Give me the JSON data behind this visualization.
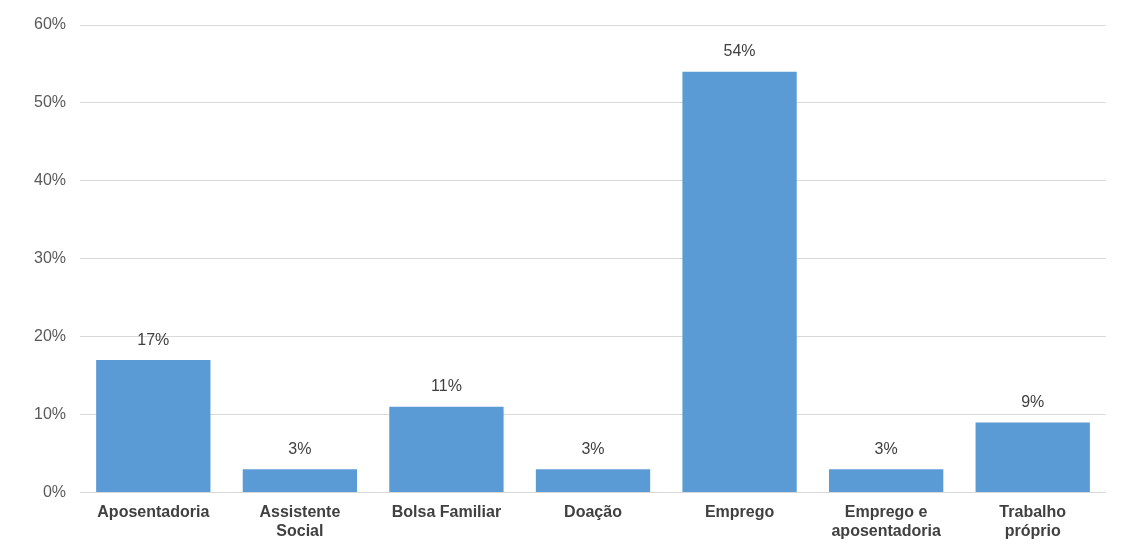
{
  "chart_data": {
    "type": "bar",
    "categories": [
      "Aposentadoria",
      "Assistente Social",
      "Bolsa Familiar",
      "Doação",
      "Emprego",
      "Emprego e aposentadoria",
      "Trabalho próprio"
    ],
    "values": [
      17,
      3,
      11,
      3,
      54,
      3,
      9
    ],
    "color": "#5b9bd5",
    "ylim": [
      0,
      60
    ],
    "yticks": [
      {
        "value": 0,
        "label": "0%"
      },
      {
        "value": 10,
        "label": "10%"
      },
      {
        "value": 20,
        "label": "20%"
      },
      {
        "value": 30,
        "label": "30%"
      },
      {
        "value": 40,
        "label": "40%"
      },
      {
        "value": 50,
        "label": "50%"
      },
      {
        "value": 60,
        "label": "60%"
      }
    ],
    "value_labels": [
      "17%",
      "3%",
      "11%",
      "3%",
      "54%",
      "3%",
      "9%"
    ],
    "grid": "y",
    "legend": false
  }
}
